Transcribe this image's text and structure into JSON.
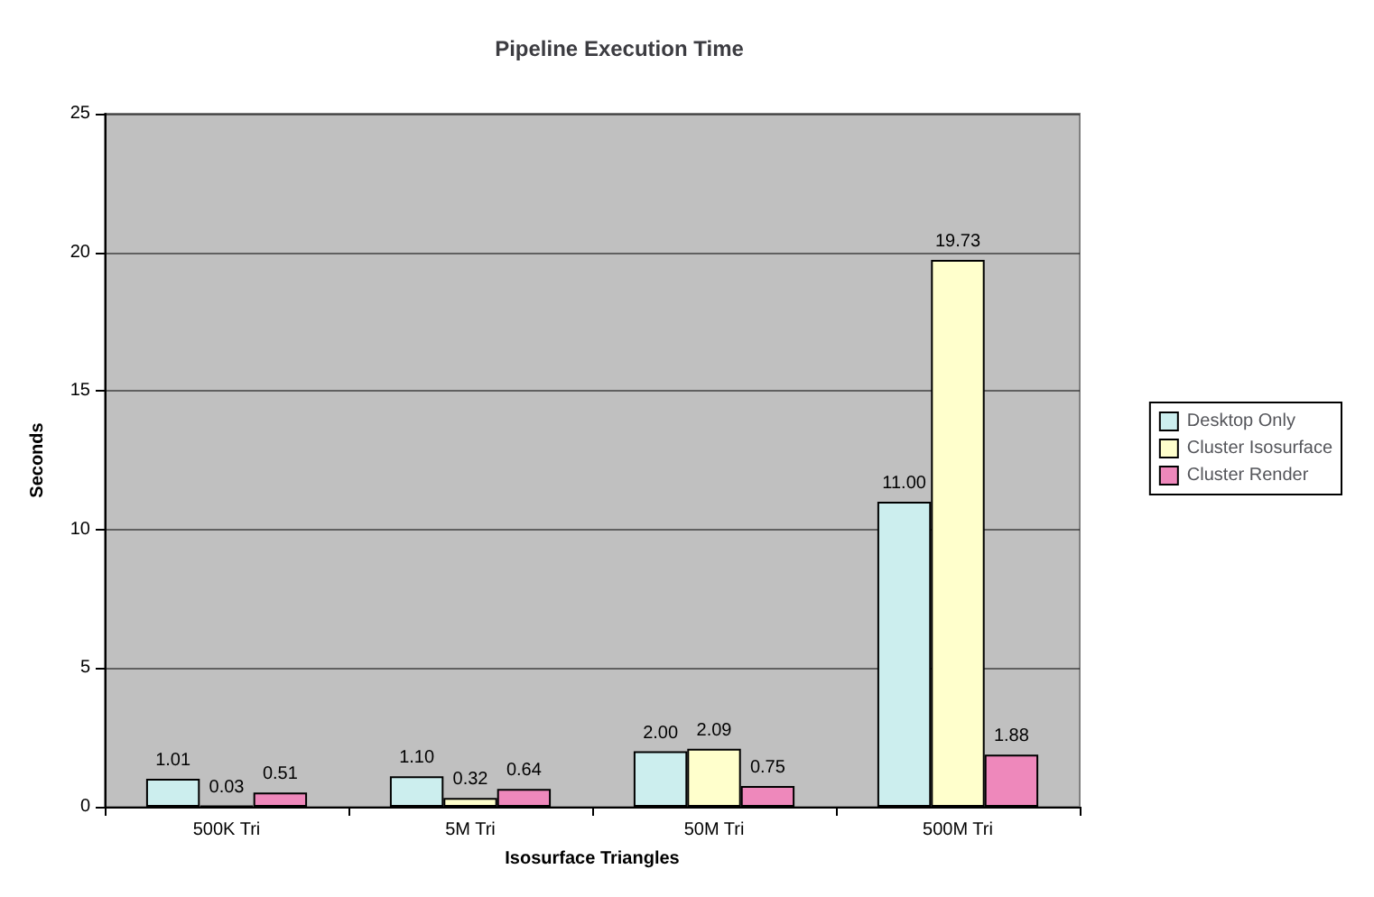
{
  "chart_data": {
    "type": "bar",
    "title": "Pipeline Execution Time",
    "xlabel": "Isosurface Triangles",
    "ylabel": "Seconds",
    "categories": [
      "500K Tri",
      "5M Tri",
      "50M Tri",
      "500M Tri"
    ],
    "series": [
      {
        "name": "Desktop Only",
        "color": "#cceeee",
        "values": [
          1.01,
          1.1,
          2.0,
          11.0
        ],
        "value_labels": [
          "1.01",
          "1.10",
          "2.00",
          "11.00"
        ]
      },
      {
        "name": "Cluster Isosurface",
        "color": "#ffffcc",
        "values": [
          0.03,
          0.32,
          2.09,
          19.73
        ],
        "value_labels": [
          "0.03",
          "0.32",
          "2.09",
          "19.73"
        ]
      },
      {
        "name": "Cluster Render",
        "color": "#ee88bb",
        "values": [
          0.51,
          0.64,
          0.75,
          1.88
        ],
        "value_labels": [
          "0.51",
          "0.64",
          "0.75",
          "1.88"
        ]
      }
    ],
    "ylim": [
      0,
      25
    ],
    "yticks": [
      0,
      5,
      10,
      15,
      20,
      25
    ],
    "grid": "y",
    "legend": "right"
  }
}
